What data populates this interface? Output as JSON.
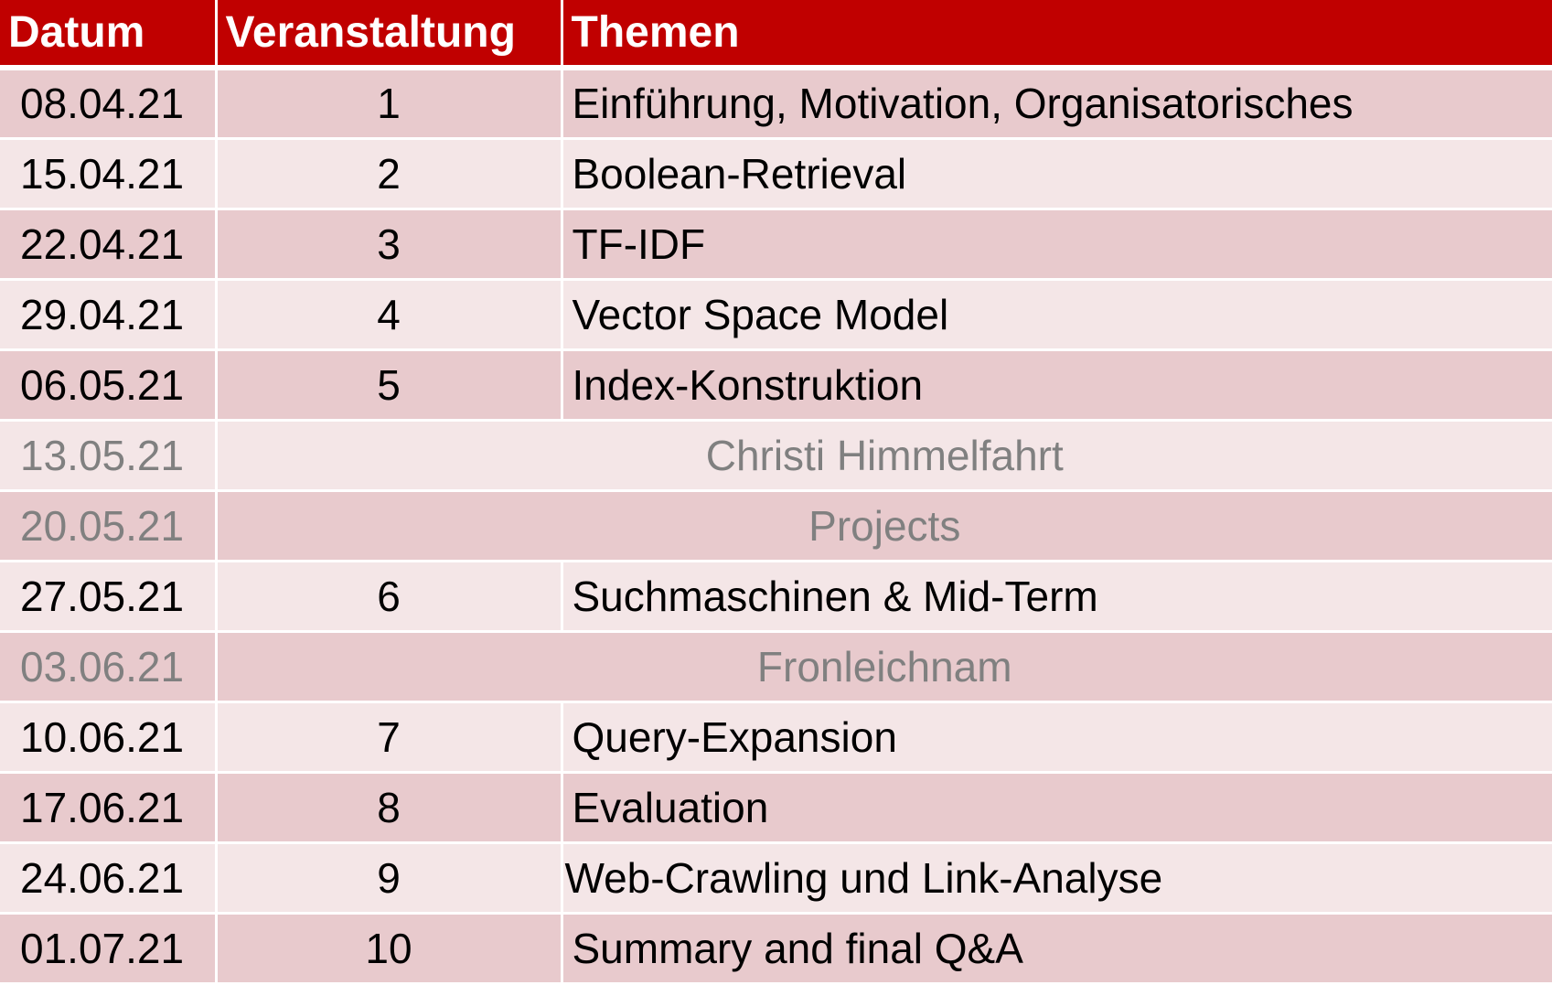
{
  "header": {
    "date_label": "Datum",
    "session_label": "Veranstaltung",
    "topics_label": "Themen"
  },
  "colors": {
    "header_bg": "#c00000",
    "row_dark": "#e8cacd",
    "row_light": "#f4e6e7",
    "holiday_text": "#808080"
  },
  "rows": [
    {
      "date": "08.04.21",
      "session": "1",
      "topic": "Einführung, Motivation, Organisatorisches"
    },
    {
      "date": "15.04.21",
      "session": "2",
      "topic": "Boolean-Retrieval"
    },
    {
      "date": "22.04.21",
      "session": "3",
      "topic": "TF-IDF"
    },
    {
      "date": "29.04.21",
      "session": "4",
      "topic": "Vector Space Model"
    },
    {
      "date": "06.05.21",
      "session": "5",
      "topic": "Index-Konstruktion"
    },
    {
      "date": "13.05.21",
      "note": "Christi Himmelfahrt"
    },
    {
      "date": "20.05.21",
      "note": "Projects"
    },
    {
      "date": "27.05.21",
      "session": "6",
      "topic": "Suchmaschinen & Mid-Term"
    },
    {
      "date": "03.06.21",
      "note": "Fronleichnam"
    },
    {
      "date": "10.06.21",
      "session": "7",
      "topic": "Query-Expansion"
    },
    {
      "date": "17.06.21",
      "session": "8",
      "topic": "Evaluation"
    },
    {
      "date": "24.06.21",
      "session": "9",
      "topic": "Web-Crawling und Link-Analyse"
    },
    {
      "date": "01.07.21",
      "session": "10",
      "topic": "Summary and final Q&A"
    }
  ]
}
